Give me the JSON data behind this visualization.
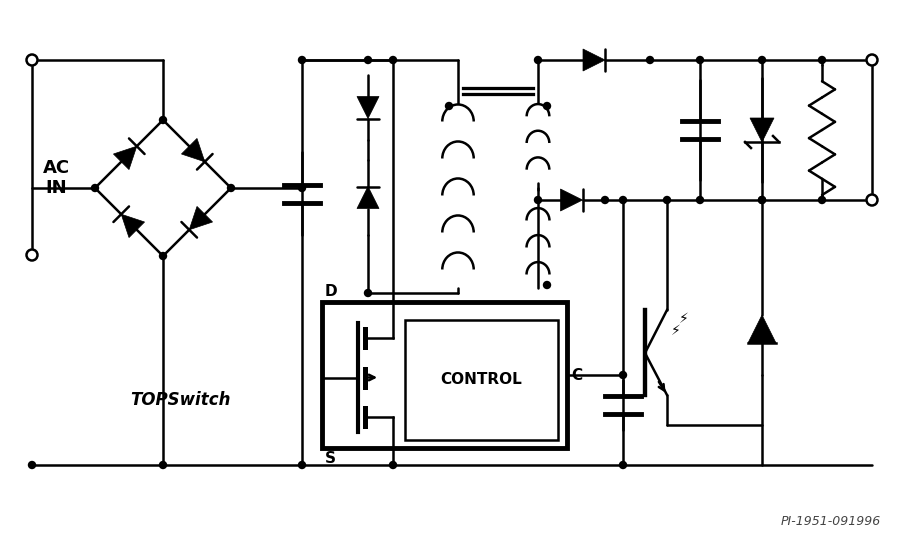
{
  "background": "#ffffff",
  "line_color": "#000000",
  "lw": 1.8,
  "blw": 3.5,
  "figsize": [
    9.21,
    5.35
  ],
  "dpi": 100,
  "annotation": "PI-1951-091996",
  "label_AC_IN": "AC\nIN",
  "label_D": "D",
  "label_S": "S",
  "label_C": "C",
  "label_CONTROL": "CONTROL",
  "label_TOPSwitch": "TOPSwitch"
}
